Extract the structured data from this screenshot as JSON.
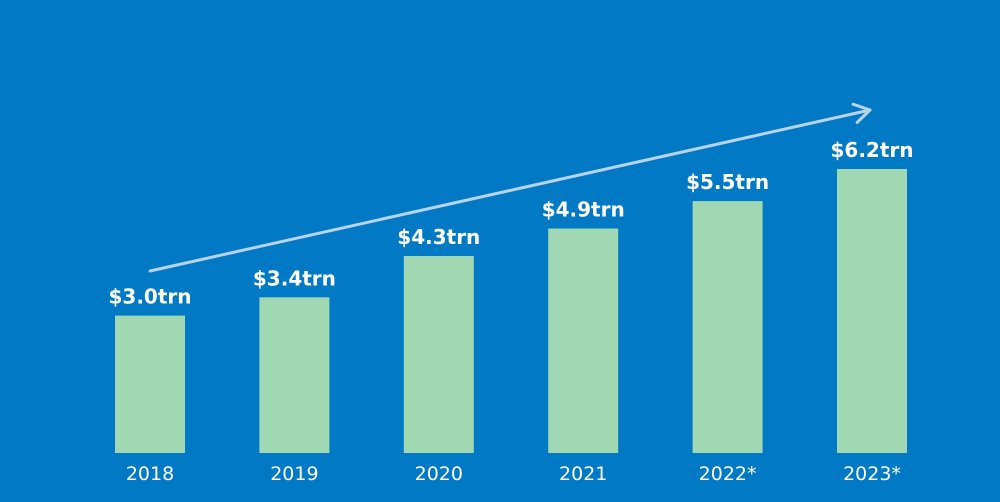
{
  "colors": {
    "background": "#0279c5",
    "bar": "#9fd8b2",
    "trend_arrow": "#b8d3ee",
    "text": "#ffffff"
  },
  "chart_data": {
    "type": "bar",
    "title": "",
    "xlabel": "",
    "ylabel": "",
    "unit": "trillion USD",
    "categories": [
      "2018",
      "2019",
      "2020",
      "2021",
      "2022*",
      "2023*"
    ],
    "values": [
      3.0,
      3.4,
      4.3,
      4.9,
      5.5,
      6.2
    ],
    "data_labels": [
      "$3.0trn",
      "$3.4trn",
      "$4.3trn",
      "$4.9trn",
      "$5.5trn",
      "$6.2trn"
    ],
    "ylim": [
      0,
      6.2
    ],
    "grid": false,
    "legend": "none",
    "annotations": [
      {
        "type": "trend-arrow",
        "from_category": "2018",
        "to_category": "2023*",
        "direction": "upward"
      }
    ]
  }
}
